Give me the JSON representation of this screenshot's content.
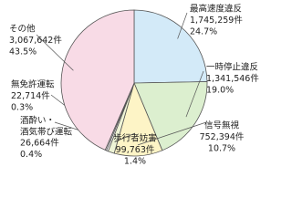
{
  "chart_data": {
    "type": "pie",
    "categories": [
      "最高速度違反",
      "一時停止違反",
      "信号無視",
      "歩行者妨害",
      "酒酔い・\n酒気帯び運転",
      "無免許運転",
      "その他"
    ],
    "values": [
      24.7,
      19.0,
      10.7,
      1.4,
      0.4,
      0.3,
      43.5
    ],
    "value_labels": [
      "24.7%",
      "19.0%",
      "10.7%",
      "1.4%",
      "0.4%",
      "0.3%",
      "43.5%"
    ],
    "count_labels": [
      "1,745,259件",
      "1,341,546件",
      "752,394件",
      "99,763件",
      "26,664件",
      "22,714件",
      "3,067,642件"
    ],
    "colors": [
      "#d3eaf8",
      "#dcefcf",
      "#fdf4c6",
      "#eef4d6",
      "#ffffff",
      "#e6e6e6",
      "#f8dbe6"
    ]
  }
}
